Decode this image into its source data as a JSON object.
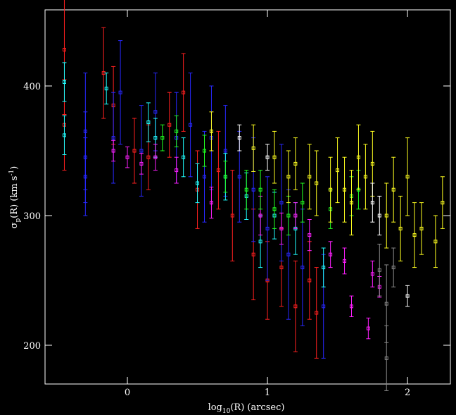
{
  "chart_data": {
    "type": "scatter",
    "x_label": [
      "log",
      "10",
      "(R) (arcsec)"
    ],
    "y_label": [
      "σ",
      "p",
      "(R) (km s",
      "-1",
      ")"
    ],
    "xlim": [
      -0.588,
      2.306
    ],
    "ylim": [
      170.1,
      458.7
    ],
    "xticks": [
      0,
      1,
      2
    ],
    "yticks": [
      200,
      300,
      400
    ],
    "series": [
      {
        "color": "#ff2020",
        "x": [
          -0.45,
          -0.45,
          -0.17,
          -0.1,
          0.05,
          0.15,
          0.3,
          0.4,
          0.5,
          0.65,
          0.75,
          0.9,
          1.0,
          1.1,
          1.2,
          1.3,
          1.35
        ],
        "values": [
          428,
          370,
          410,
          385,
          350,
          345,
          370,
          395,
          320,
          335,
          300,
          270,
          250,
          260,
          230,
          250,
          225
        ],
        "errors": [
          50,
          35,
          35,
          30,
          25,
          25,
          25,
          30,
          30,
          30,
          35,
          35,
          30,
          30,
          35,
          30,
          35
        ]
      },
      {
        "color": "#2828ff",
        "x": [
          -0.3,
          -0.3,
          -0.3,
          -0.1,
          -0.05,
          0.1,
          0.2,
          0.35,
          0.45,
          0.55,
          0.6,
          0.7,
          0.8,
          0.9,
          1.0,
          1.1,
          1.15,
          1.25,
          1.4
        ],
        "values": [
          365,
          345,
          330,
          360,
          395,
          350,
          380,
          360,
          370,
          330,
          360,
          350,
          330,
          320,
          290,
          310,
          270,
          260,
          230
        ],
        "errors": [
          45,
          35,
          30,
          35,
          40,
          35,
          30,
          35,
          40,
          35,
          40,
          35,
          35,
          40,
          40,
          45,
          50,
          45,
          40
        ]
      },
      {
        "color": "#20ffff",
        "x": [
          -0.45,
          -0.45,
          -0.15,
          0.15,
          0.2,
          0.4,
          0.5,
          0.7,
          0.85,
          0.95,
          1.05,
          1.2,
          1.4
        ],
        "values": [
          403,
          362,
          398,
          372,
          360,
          345,
          325,
          330,
          315,
          280,
          300,
          290,
          260
        ],
        "errors": [
          15,
          15,
          12,
          15,
          15,
          15,
          15,
          18,
          18,
          20,
          18,
          20,
          15
        ]
      },
      {
        "color": "#ff20ff",
        "x": [
          -0.1,
          0.0,
          0.1,
          0.2,
          0.35,
          0.6,
          0.95,
          1.1,
          1.2,
          1.3,
          1.45,
          1.55,
          1.6,
          1.75,
          1.8,
          1.72
        ],
        "values": [
          350,
          345,
          340,
          345,
          335,
          310,
          300,
          290,
          300,
          285,
          270,
          265,
          230,
          255,
          245,
          213
        ],
        "errors": [
          8,
          8,
          8,
          10,
          10,
          12,
          15,
          12,
          10,
          12,
          10,
          10,
          8,
          10,
          8,
          8
        ]
      },
      {
        "color": "#20ff20",
        "x": [
          0.25,
          0.35,
          0.55,
          0.7,
          0.85,
          0.95,
          1.05,
          1.15,
          1.25,
          1.45,
          1.6,
          1.65
        ],
        "values": [
          360,
          365,
          350,
          330,
          320,
          320,
          305,
          300,
          310,
          305,
          315,
          320
        ],
        "errors": [
          10,
          12,
          12,
          12,
          15,
          15,
          15,
          15,
          15,
          15,
          15,
          15
        ]
      },
      {
        "color": "#ffff20",
        "x": [
          0.6,
          0.9,
          1.05,
          1.15,
          1.2,
          1.3,
          1.35,
          1.45,
          1.5,
          1.55,
          1.6,
          1.65,
          1.7,
          1.75,
          1.85,
          1.9,
          1.95,
          2.0,
          2.05,
          2.1,
          2.2,
          2.25
        ],
        "values": [
          365,
          352,
          345,
          330,
          340,
          330,
          325,
          320,
          335,
          320,
          310,
          345,
          330,
          340,
          300,
          320,
          290,
          330,
          285,
          290,
          280,
          310
        ],
        "errors": [
          15,
          18,
          20,
          20,
          20,
          25,
          25,
          25,
          25,
          25,
          25,
          25,
          25,
          25,
          25,
          25,
          25,
          30,
          25,
          20,
          20,
          20
        ]
      },
      {
        "color": "#ffffff",
        "x": [
          0.8,
          1.0,
          1.75,
          1.8,
          2.0
        ],
        "values": [
          360,
          345,
          310,
          300,
          238
        ],
        "errors": [
          10,
          10,
          15,
          15,
          8
        ]
      },
      {
        "color": "#888888",
        "x": [
          1.8,
          1.85,
          1.85,
          1.9
        ],
        "values": [
          258,
          190,
          232,
          260
        ],
        "errors": [
          20,
          25,
          30,
          15
        ]
      }
    ]
  }
}
